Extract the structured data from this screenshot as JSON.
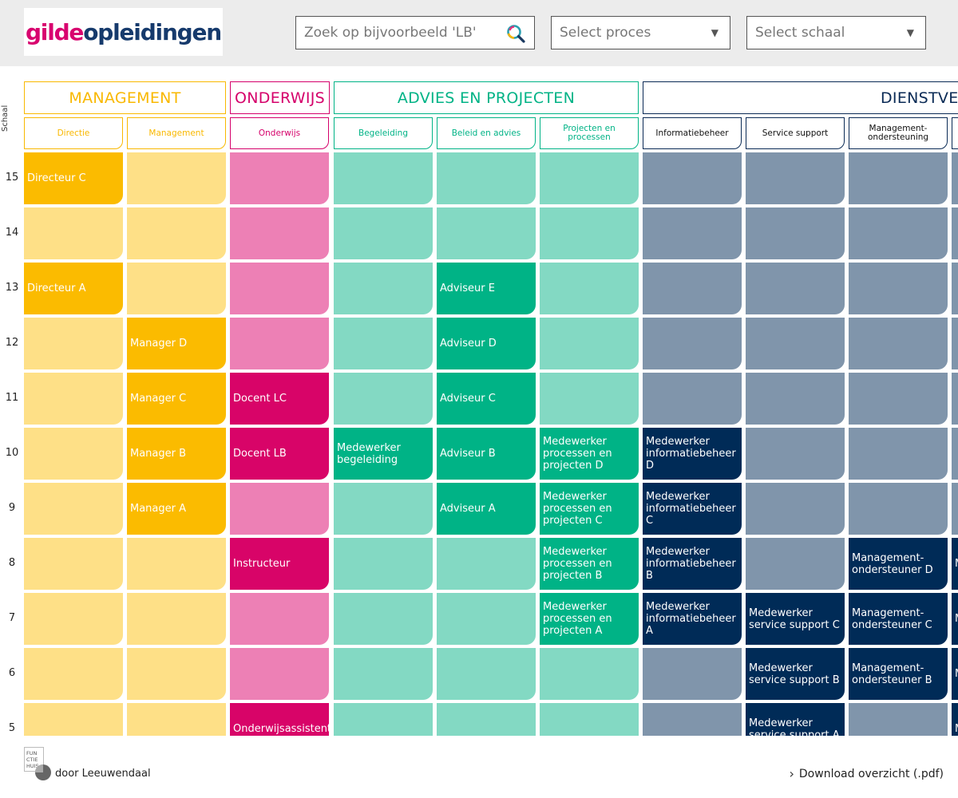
{
  "header": {
    "logo_part1": "gilde",
    "logo_part2": "opleidingen",
    "search_placeholder": "Zoek op bijvoorbeeld 'LB'",
    "select_proces": "Select proces",
    "select_schaal": "Select schaal"
  },
  "schaal_label": "Schaal",
  "categories": [
    {
      "label": "MANAGEMENT",
      "color": "#f9b800"
    },
    {
      "label": "ONDERWIJS",
      "color": "#d5006a"
    },
    {
      "label": "ADVIES EN PROJECTEN",
      "color": "#00b386"
    },
    {
      "label": "DIENSTVERLENING",
      "color": "#0a2a55"
    }
  ],
  "columns": [
    {
      "label": "Directie",
      "cat": 0
    },
    {
      "label": "Management",
      "cat": 0
    },
    {
      "label": "Onderwijs",
      "cat": 1
    },
    {
      "label": "Begeleiding",
      "cat": 2
    },
    {
      "label": "Beleid en advies",
      "cat": 2
    },
    {
      "label": "Projecten en processen",
      "cat": 2
    },
    {
      "label": "Informatiebeheer",
      "cat": 3
    },
    {
      "label": "Service support",
      "cat": 3
    },
    {
      "label": "Management-ondersteuning",
      "cat": 3
    },
    {
      "label": "",
      "cat": 3
    }
  ],
  "palette": [
    {
      "light": "#fee087",
      "dark": "#fbbb00"
    },
    {
      "light": "#ed80b5",
      "dark": "#d80468"
    },
    {
      "light": "#83d9c3",
      "dark": "#00b386"
    },
    {
      "light": "#8095ab",
      "dark": "#002b57"
    }
  ],
  "rows": [
    "15",
    "14",
    "13",
    "12",
    "11",
    "10",
    "9",
    "8",
    "7",
    "6",
    "5"
  ],
  "cells": {
    "15": {
      "0": "Directeur C"
    },
    "13": {
      "0": "Directeur A",
      "4": "Adviseur E"
    },
    "12": {
      "1": "Manager D",
      "4": "Adviseur D"
    },
    "11": {
      "1": "Manager C",
      "2": "Docent LC",
      "4": "Adviseur C"
    },
    "10": {
      "1": "Manager B",
      "2": "Docent LB",
      "3": "Medewerker begeleiding",
      "4": "Adviseur B",
      "5": "Medewerker processen en projecten D",
      "6": "Medewerker informatiebeheer D"
    },
    "9": {
      "1": "Manager A",
      "4": "Adviseur A",
      "5": "Medewerker processen en projecten C",
      "6": "Medewerker informatiebeheer C"
    },
    "8": {
      "2": "Instructeur",
      "5": "Medewerker processen en projecten B",
      "6": "Medewerker informatiebeheer B",
      "8": "Management-ondersteuner D",
      "9": "M a"
    },
    "7": {
      "5": "Medewerker processen en projecten A",
      "6": "Medewerker informatiebeheer A",
      "7": "Medewerker service support C",
      "8": "Management-ondersteuner C",
      "9": "M a"
    },
    "6": {
      "7": "Medewerker service support B",
      "8": "Management-ondersteuner B",
      "9": "M a"
    },
    "5": {
      "2": "Onderwijsassistent",
      "7": "Medewerker service support A",
      "9": "M a"
    }
  },
  "footer": {
    "funchiehuis": [
      "FUN",
      "CTIE",
      "HUIS"
    ],
    "by_text": "door Leeuwendaal",
    "download_label": "Download overzicht (.pdf)"
  }
}
